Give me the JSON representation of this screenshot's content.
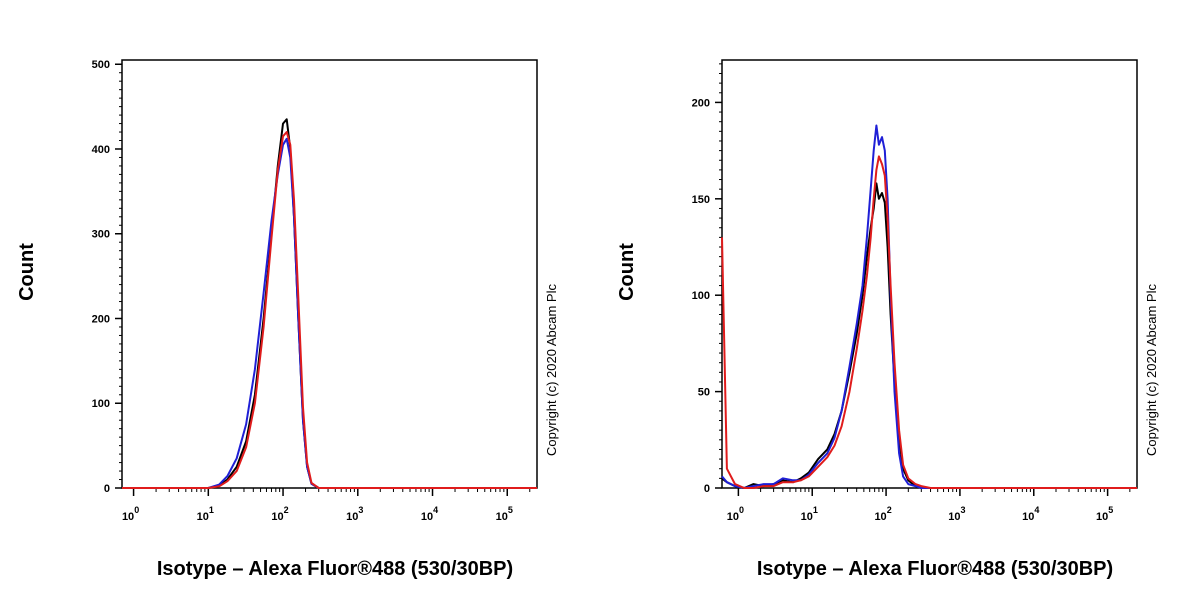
{
  "chart_data": [
    {
      "type": "line",
      "title": "",
      "xlabel": "Isotype – Alexa Fluor®488 (530/30BP)",
      "ylabel": "Count",
      "xscale": "log",
      "xlim": [
        0.7,
        250000
      ],
      "ylim": [
        0,
        505
      ],
      "yticks": [
        0,
        100,
        200,
        300,
        400,
        500
      ],
      "xtick_labels": [
        {
          "base": "10",
          "exp": "0"
        },
        {
          "base": "10",
          "exp": "1"
        },
        {
          "base": "10",
          "exp": "2"
        },
        {
          "base": "10",
          "exp": "3"
        },
        {
          "base": "10",
          "exp": "4"
        },
        {
          "base": "10",
          "exp": "5"
        }
      ],
      "annotation": "Copyright (c) 2020 Abcam Plc",
      "series": [
        {
          "name": "black",
          "color": "#000000",
          "x": [
            0.7,
            10,
            14,
            18,
            24,
            32,
            42,
            55,
            70,
            85,
            100,
            112,
            125,
            140,
            160,
            185,
            210,
            240,
            300,
            250000
          ],
          "y": [
            0,
            0,
            3,
            10,
            25,
            55,
            110,
            200,
            300,
            380,
            430,
            435,
            400,
            320,
            200,
            80,
            25,
            5,
            0,
            0
          ]
        },
        {
          "name": "blue",
          "color": "#1f1fd6",
          "x": [
            0.7,
            10,
            14,
            18,
            24,
            32,
            42,
            55,
            70,
            85,
            100,
            112,
            125,
            140,
            160,
            185,
            210,
            240,
            300,
            250000
          ],
          "y": [
            0,
            0,
            4,
            14,
            35,
            75,
            140,
            230,
            315,
            370,
            405,
            412,
            390,
            320,
            200,
            80,
            25,
            5,
            0,
            0
          ]
        },
        {
          "name": "red",
          "color": "#e01c1c",
          "x": [
            0.7,
            10,
            14,
            18,
            24,
            32,
            42,
            55,
            70,
            85,
            100,
            112,
            125,
            140,
            160,
            185,
            210,
            240,
            300,
            250000
          ],
          "y": [
            0,
            0,
            2,
            8,
            20,
            48,
            100,
            190,
            295,
            375,
            415,
            420,
            405,
            340,
            225,
            95,
            30,
            6,
            0,
            0
          ]
        }
      ]
    },
    {
      "type": "line",
      "title": "",
      "xlabel": "Isotype – Alexa Fluor®488 (530/30BP)",
      "ylabel": "Count",
      "xscale": "log",
      "xlim": [
        0.6,
        250000
      ],
      "ylim": [
        0,
        222
      ],
      "yticks": [
        0,
        50,
        100,
        150,
        200
      ],
      "xtick_labels": [
        {
          "base": "10",
          "exp": "0"
        },
        {
          "base": "10",
          "exp": "1"
        },
        {
          "base": "10",
          "exp": "2"
        },
        {
          "base": "10",
          "exp": "3"
        },
        {
          "base": "10",
          "exp": "4"
        },
        {
          "base": "10",
          "exp": "5"
        }
      ],
      "annotation": "Copyright (c) 2020 Abcam Plc",
      "series": [
        {
          "name": "black",
          "color": "#000000",
          "x": [
            0.6,
            0.7,
            0.9,
            1.2,
            1.6,
            2.2,
            3,
            4,
            5.5,
            7,
            9,
            12,
            16,
            20,
            25,
            32,
            40,
            48,
            55,
            62,
            68,
            74,
            80,
            88,
            96,
            105,
            115,
            130,
            150,
            170,
            200,
            250,
            300,
            400,
            250000
          ],
          "y": [
            5,
            3,
            1,
            0,
            2,
            1,
            2,
            4,
            3,
            5,
            8,
            15,
            20,
            28,
            40,
            60,
            80,
            100,
            120,
            135,
            145,
            158,
            150,
            153,
            148,
            125,
            90,
            55,
            25,
            10,
            4,
            1,
            0,
            0,
            0
          ]
        },
        {
          "name": "blue",
          "color": "#1f1fd6",
          "x": [
            0.6,
            0.7,
            0.9,
            1.2,
            1.6,
            2.2,
            3,
            4,
            5.5,
            7,
            9,
            12,
            16,
            20,
            25,
            32,
            40,
            48,
            55,
            62,
            68,
            74,
            80,
            88,
            96,
            105,
            115,
            130,
            150,
            170,
            200,
            250,
            300,
            400,
            250000
          ],
          "y": [
            6,
            3,
            1,
            0,
            1,
            2,
            2,
            5,
            4,
            4,
            7,
            13,
            18,
            26,
            40,
            63,
            85,
            105,
            130,
            155,
            175,
            188,
            178,
            182,
            175,
            150,
            100,
            50,
            18,
            6,
            2,
            1,
            0,
            0,
            0
          ]
        },
        {
          "name": "red",
          "color": "#e01c1c",
          "x": [
            0.6,
            0.7,
            0.9,
            1.2,
            1.6,
            2.2,
            3,
            4,
            5.5,
            7,
            9,
            12,
            16,
            20,
            25,
            32,
            40,
            48,
            55,
            62,
            68,
            74,
            80,
            88,
            96,
            105,
            115,
            130,
            150,
            170,
            200,
            250,
            300,
            400,
            250000
          ],
          "y": [
            130,
            10,
            2,
            0,
            0,
            1,
            1,
            3,
            3,
            4,
            6,
            11,
            16,
            22,
            32,
            50,
            72,
            92,
            110,
            130,
            150,
            165,
            172,
            168,
            162,
            140,
            105,
            65,
            30,
            12,
            5,
            2,
            1,
            0,
            0
          ]
        }
      ]
    }
  ]
}
